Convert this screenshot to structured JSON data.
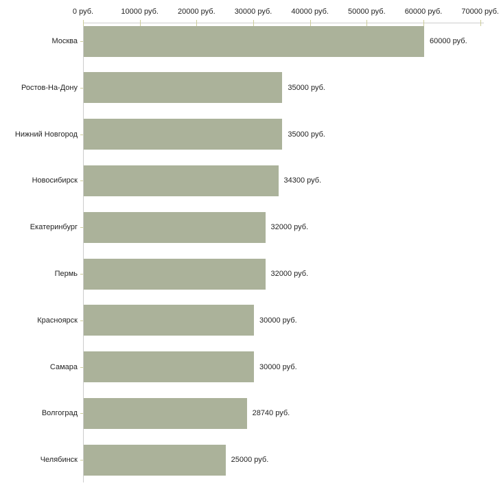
{
  "chart_data": {
    "type": "bar",
    "orientation": "horizontal",
    "unit": "руб.",
    "categories": [
      "Москва",
      "Ростов-На-Дону",
      "Нижний Новгород",
      "Новосибирск",
      "Екатеринбург",
      "Пермь",
      "Красноярск",
      "Самара",
      "Волгоград",
      "Челябинск"
    ],
    "values": [
      60000,
      35000,
      35000,
      34300,
      32000,
      32000,
      30000,
      30000,
      28740,
      25000
    ],
    "value_labels": [
      "60000 руб.",
      "35000 руб.",
      "35000 руб.",
      "34300 руб.",
      "32000 руб.",
      "32000 руб.",
      "30000 руб.",
      "30000 руб.",
      "28740 руб.",
      "25000 руб."
    ],
    "x_axis": {
      "position": "top",
      "range": [
        0,
        70000
      ],
      "ticks": [
        0,
        10000,
        20000,
        30000,
        40000,
        50000,
        60000,
        70000
      ],
      "tick_labels": [
        "0 руб.",
        "10000 руб.",
        "20000 руб.",
        "30000 руб.",
        "40000 руб.",
        "50000 руб.",
        "60000 руб.",
        "70000 руб."
      ]
    },
    "grid": false,
    "legend": null,
    "colors": {
      "bar": "#ABB29A",
      "axis_line": "#CCCCCC",
      "tick_mark": "#CCCC99",
      "text": "#222222",
      "background": "#FFFFFF"
    }
  }
}
